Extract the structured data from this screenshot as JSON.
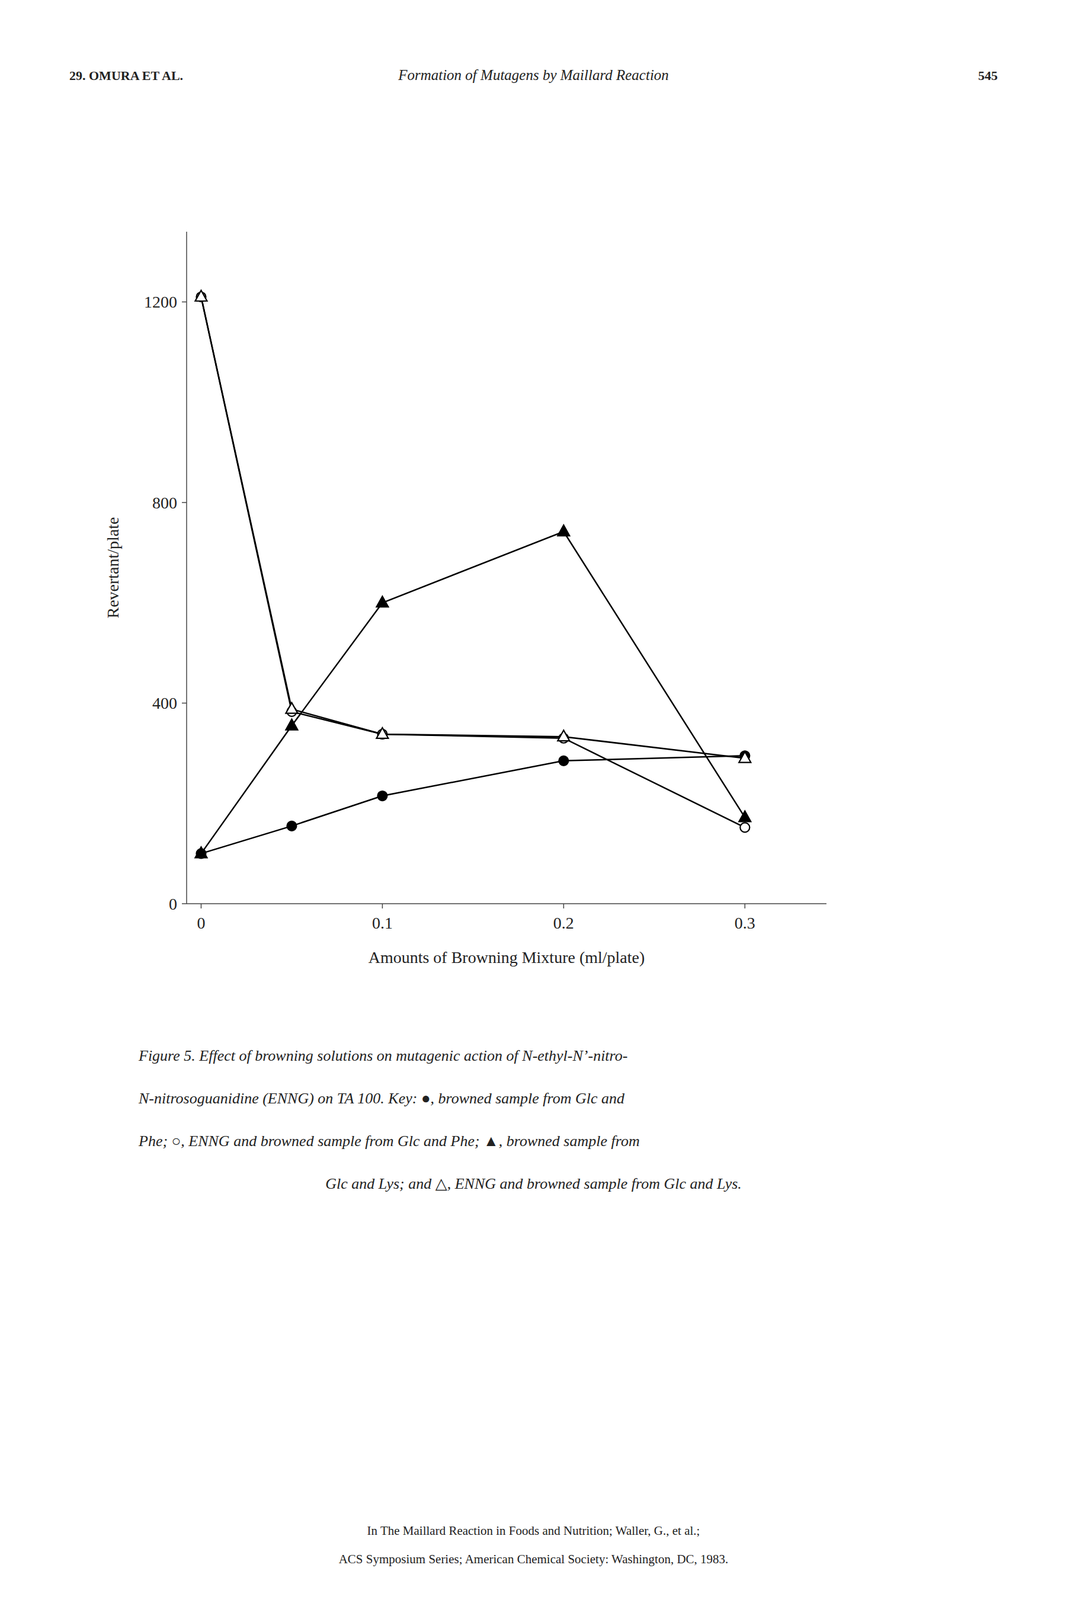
{
  "chart_data": {
    "type": "line",
    "x": [
      0,
      0.05,
      0.1,
      0.2,
      0.3
    ],
    "series": [
      {
        "values": [
          100,
          155,
          215,
          285,
          295
        ],
        "marker": "circle",
        "color": "#000000"
      },
      {
        "values": [
          1210,
          383,
          338,
          330,
          152
        ],
        "marker": "circle-open",
        "color": "#000000"
      },
      {
        "values": [
          100,
          355,
          600,
          742,
          172
        ],
        "marker": "triangle",
        "color": "#000000"
      },
      {
        "values": [
          1210,
          388,
          338,
          333,
          290
        ],
        "marker": "triangle-open",
        "color": "#000000"
      }
    ],
    "x_label": "Amounts of Browning Mixture (ml/plate)",
    "y_label": "Revertant/plate",
    "xlim": [
      -0.008,
      0.345
    ],
    "ylim": [
      0,
      1340
    ],
    "xticks": [
      0,
      0.1,
      0.2,
      0.3
    ],
    "yticks": [
      0,
      400,
      800,
      1200
    ],
    "grid": false,
    "annotations": [
      "29.  OMURA ET AL.",
      "Formation of Mutagens by Maillard Reaction",
      "545",
      "Figure 5.   Effect of browning solutions on mutagenic action of N-ethyl-N’-nitro-",
      "N-nitrosoguanidine (ENNG) on TA 100. Key: ●, browned sample from Glc and",
      "Phe; ○, ENNG and browned sample from Glc and Phe; ▲, browned sample from",
      "Glc and Lys; and △, ENNG and browned sample from Glc and Lys.",
      "In The Maillard Reaction in Foods and Nutrition; Waller, G., et al.;",
      "ACS Symposium Series; American Chemical Society: Washington, DC, 1983."
    ]
  }
}
